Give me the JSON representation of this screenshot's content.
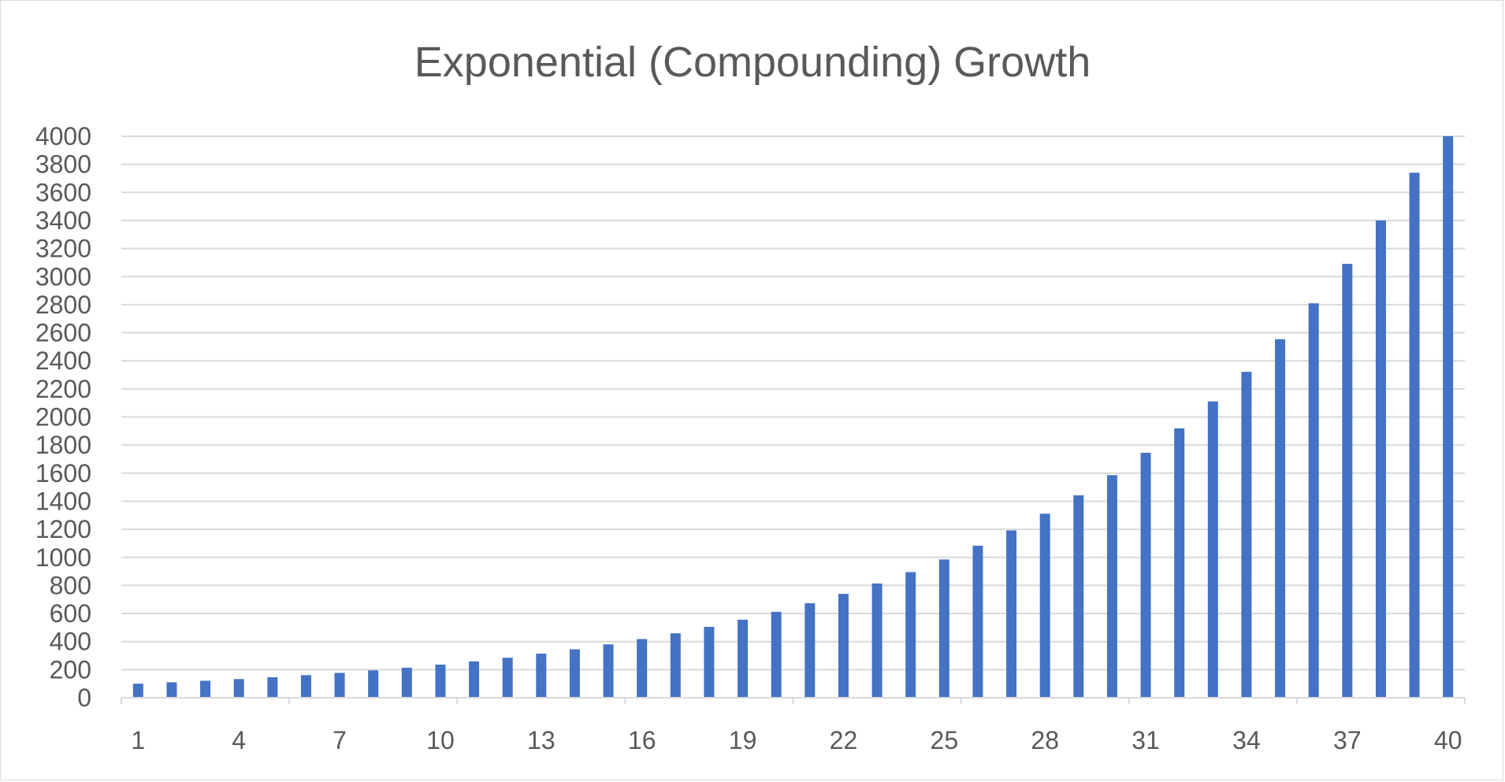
{
  "chart_data": {
    "type": "bar",
    "title": "Exponential (Compounding) Growth",
    "xlabel": "",
    "ylabel": "",
    "ylim": [
      0,
      4000
    ],
    "y_ticks": [
      0,
      200,
      400,
      600,
      800,
      1000,
      1200,
      1400,
      1600,
      1800,
      2000,
      2200,
      2400,
      2600,
      2800,
      3000,
      3200,
      3400,
      3600,
      3800,
      4000
    ],
    "categories": [
      1,
      2,
      3,
      4,
      5,
      6,
      7,
      8,
      9,
      10,
      11,
      12,
      13,
      14,
      15,
      16,
      17,
      18,
      19,
      20,
      21,
      22,
      23,
      24,
      25,
      26,
      27,
      28,
      29,
      30,
      31,
      32,
      33,
      34,
      35,
      36,
      37,
      38,
      39,
      40
    ],
    "x_tick_labels_shown": [
      1,
      4,
      7,
      10,
      13,
      16,
      19,
      22,
      25,
      28,
      31,
      34,
      37,
      40
    ],
    "values": [
      100,
      110,
      121,
      133,
      146,
      161,
      177,
      195,
      214,
      236,
      259,
      285,
      314,
      345,
      380,
      418,
      459,
      505,
      556,
      612,
      673,
      740,
      814,
      895,
      985,
      1083,
      1192,
      1311,
      1442,
      1586,
      1745,
      1919,
      2111,
      2322,
      2554,
      2810,
      3091,
      3400,
      3740,
      4000
    ],
    "grid": true,
    "legend": "none",
    "bar_color": "#4472C4"
  }
}
